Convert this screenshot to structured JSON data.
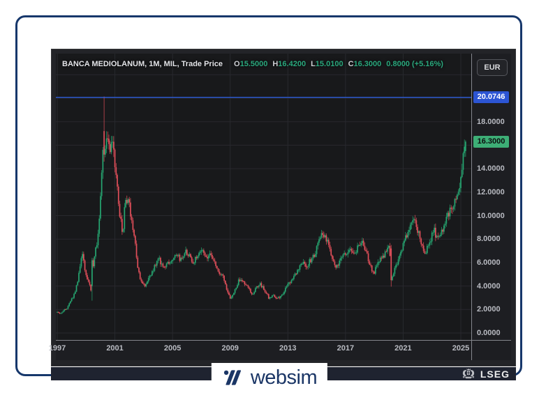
{
  "header": {
    "title": "BANCA MEDIOLANUM, 1M, MIL, Trade Price",
    "ohlc": [
      {
        "label": "O",
        "value": "15.5000"
      },
      {
        "label": "H",
        "value": "16.4200"
      },
      {
        "label": "L",
        "value": "15.0100"
      },
      {
        "label": "C",
        "value": "16.3000"
      }
    ],
    "change": "0.8000 (+5.16%)",
    "currency": "EUR"
  },
  "y_axis": {
    "ticks": [
      "18.0000",
      "16.0000",
      "14.0000",
      "12.0000",
      "10.0000",
      "8.0000",
      "6.0000",
      "4.0000",
      "2.0000",
      "0.0000"
    ],
    "badges": [
      {
        "text": "20.0746",
        "price": 20.0746,
        "type": "level"
      },
      {
        "text": "16.3000",
        "price": 16.3,
        "type": "last"
      }
    ]
  },
  "x_axis": {
    "ticks": [
      "1997",
      "2001",
      "2005",
      "2009",
      "2013",
      "2017",
      "2021",
      "2025"
    ]
  },
  "footer": {
    "brand": "LSEG"
  },
  "bottom_logo": {
    "text": "websim"
  },
  "colors": {
    "up": "#26a671",
    "down": "#e14f5a",
    "level_line": "#2e62ec",
    "level_badge_bg": "#2c55d4",
    "last_badge_bg": "#3dae76",
    "grid": "#28292e",
    "value_green": "#2aa87d",
    "brand_navy": "#1b3666"
  },
  "chart_data": {
    "type": "candlestick",
    "title": "BANCA MEDIOLANUM, 1M, MIL, Trade Price",
    "symbol": "BANCA MEDIOLANUM",
    "interval": "1M",
    "exchange": "MIL",
    "field": "Trade Price",
    "currency": "EUR",
    "legend_position": "top-left",
    "grid": true,
    "x_range": [
      1997,
      2025.8
    ],
    "y_range": [
      0,
      23.8
    ],
    "y_tick_step": 2,
    "x_tick_years": [
      1997,
      2001,
      2005,
      2009,
      2013,
      2017,
      2021,
      2025
    ],
    "level_line_price": 20.0746,
    "last_candle": {
      "open": 15.5,
      "high": 16.42,
      "low": 15.01,
      "close": 16.3,
      "change": 0.8,
      "change_pct": 5.16
    },
    "anchors": [
      [
        1997.0,
        1.75
      ],
      [
        1997.25,
        1.7
      ],
      [
        1997.5,
        1.9
      ],
      [
        1997.75,
        2.2
      ],
      [
        1998.0,
        2.8
      ],
      [
        1998.25,
        3.4
      ],
      [
        1998.5,
        4.6
      ],
      [
        1998.75,
        6.9
      ],
      [
        1999.0,
        5.2
      ],
      [
        1999.25,
        4.2
      ],
      [
        1999.42,
        3.4
      ],
      [
        1999.58,
        6.3
      ],
      [
        1999.83,
        7.8
      ],
      [
        2000.08,
        12.0
      ],
      [
        2000.17,
        15.5
      ],
      [
        2000.33,
        14.8
      ],
      [
        2000.5,
        17.0
      ],
      [
        2000.67,
        15.5
      ],
      [
        2000.92,
        16.5
      ],
      [
        2001.08,
        13.8
      ],
      [
        2001.33,
        10.5
      ],
      [
        2001.58,
        8.4
      ],
      [
        2001.75,
        11.2
      ],
      [
        2001.92,
        11.5
      ],
      [
        2002.17,
        10.0
      ],
      [
        2002.42,
        7.8
      ],
      [
        2002.67,
        5.3
      ],
      [
        2002.92,
        4.1
      ],
      [
        2003.17,
        4.0
      ],
      [
        2003.5,
        4.9
      ],
      [
        2003.83,
        5.7
      ],
      [
        2004.08,
        6.3
      ],
      [
        2004.42,
        5.6
      ],
      [
        2004.75,
        5.9
      ],
      [
        2005.0,
        6.1
      ],
      [
        2005.33,
        6.6
      ],
      [
        2005.58,
        6.3
      ],
      [
        2005.92,
        7.0
      ],
      [
        2006.17,
        6.7
      ],
      [
        2006.5,
        6.0
      ],
      [
        2006.83,
        6.8
      ],
      [
        2007.08,
        7.1
      ],
      [
        2007.42,
        6.5
      ],
      [
        2007.67,
        6.9
      ],
      [
        2008.0,
        5.8
      ],
      [
        2008.25,
        5.0
      ],
      [
        2008.58,
        4.8
      ],
      [
        2008.83,
        3.6
      ],
      [
        2009.08,
        2.9
      ],
      [
        2009.33,
        3.5
      ],
      [
        2009.67,
        4.6
      ],
      [
        2009.92,
        4.4
      ],
      [
        2010.25,
        3.9
      ],
      [
        2010.58,
        3.3
      ],
      [
        2010.83,
        3.8
      ],
      [
        2011.08,
        4.2
      ],
      [
        2011.42,
        3.7
      ],
      [
        2011.75,
        2.9
      ],
      [
        2012.0,
        3.3
      ],
      [
        2012.25,
        2.9
      ],
      [
        2012.58,
        3.1
      ],
      [
        2012.83,
        3.7
      ],
      [
        2013.08,
        4.2
      ],
      [
        2013.42,
        4.7
      ],
      [
        2013.75,
        5.3
      ],
      [
        2014.0,
        6.0
      ],
      [
        2014.33,
        5.7
      ],
      [
        2014.67,
        6.3
      ],
      [
        2014.92,
        6.7
      ],
      [
        2015.17,
        7.8
      ],
      [
        2015.42,
        8.4
      ],
      [
        2015.75,
        7.9
      ],
      [
        2016.0,
        6.8
      ],
      [
        2016.25,
        5.9
      ],
      [
        2016.5,
        5.6
      ],
      [
        2016.83,
        6.6
      ],
      [
        2017.08,
        6.9
      ],
      [
        2017.42,
        7.1
      ],
      [
        2017.67,
        6.7
      ],
      [
        2017.92,
        7.4
      ],
      [
        2018.17,
        7.8
      ],
      [
        2018.5,
        6.8
      ],
      [
        2018.75,
        5.7
      ],
      [
        2019.0,
        5.0
      ],
      [
        2019.25,
        5.9
      ],
      [
        2019.58,
        6.4
      ],
      [
        2019.83,
        6.9
      ],
      [
        2020.08,
        7.4
      ],
      [
        2020.25,
        4.6
      ],
      [
        2020.5,
        5.7
      ],
      [
        2020.75,
        6.3
      ],
      [
        2021.0,
        7.4
      ],
      [
        2021.25,
        8.2
      ],
      [
        2021.5,
        8.8
      ],
      [
        2021.75,
        9.6
      ],
      [
        2022.0,
        9.0
      ],
      [
        2022.25,
        7.9
      ],
      [
        2022.5,
        6.6
      ],
      [
        2022.75,
        7.4
      ],
      [
        2023.0,
        8.1
      ],
      [
        2023.17,
        8.9
      ],
      [
        2023.42,
        7.9
      ],
      [
        2023.67,
        8.4
      ],
      [
        2023.92,
        9.1
      ],
      [
        2024.17,
        10.1
      ],
      [
        2024.42,
        10.7
      ],
      [
        2024.67,
        11.3
      ],
      [
        2024.92,
        12.3
      ],
      [
        2025.08,
        13.6
      ],
      [
        2025.25,
        15.5
      ],
      [
        2025.33,
        16.3
      ]
    ],
    "overrides": [
      {
        "t": 1999.417,
        "o": 4.0,
        "h": 6.4,
        "l": 2.75,
        "c": 6.2
      },
      {
        "t": 2000.25,
        "o": 17.2,
        "h": 20.15,
        "l": 14.6,
        "c": 15.2
      },
      {
        "t": 2020.167,
        "o": 7.2,
        "h": 7.5,
        "l": 3.95,
        "c": 4.5
      },
      {
        "t": 2025.333,
        "o": 15.5,
        "h": 16.42,
        "l": 15.01,
        "c": 16.3
      }
    ]
  }
}
